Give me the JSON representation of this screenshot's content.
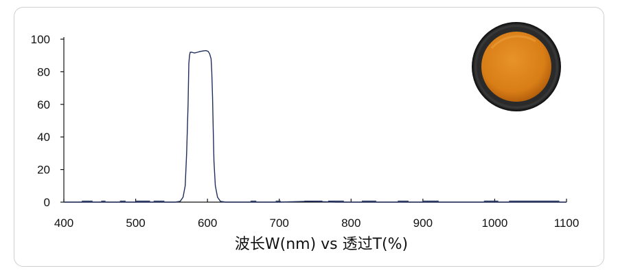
{
  "chart_data": {
    "type": "line",
    "title": "",
    "xlabel": "波长W(nm) vs 透过T(%)",
    "ylabel": "",
    "xlim": [
      400,
      1100
    ],
    "ylim": [
      0,
      100
    ],
    "x_ticks": [
      400,
      500,
      600,
      700,
      800,
      900,
      1000,
      1100
    ],
    "y_ticks": [
      0,
      20,
      40,
      60,
      80,
      100
    ],
    "grid": false,
    "legend": "none",
    "line_color": "#1f2d5a",
    "series": [
      {
        "x": [
          400,
          540,
          555,
          562,
          566,
          569,
          571,
          573,
          574,
          575,
          576,
          578,
          582,
          586,
          590,
          594,
          598,
          601,
          603,
          605,
          606,
          607,
          608,
          609,
          611,
          614,
          618,
          625,
          640,
          700,
          740,
          780,
          900,
          1100
        ],
        "y": [
          0,
          0,
          0,
          0.5,
          3,
          10,
          30,
          60,
          85,
          90,
          92,
          92,
          91.5,
          92,
          92.5,
          92.8,
          93,
          92.5,
          91,
          88,
          80,
          65,
          45,
          25,
          10,
          3,
          0.5,
          0,
          0,
          0,
          0.5,
          0,
          0,
          0
        ]
      }
    ]
  },
  "image": {
    "subject": "orange-filter-disc-icon",
    "filter_color": "#e08a22",
    "rim_color": "#141414"
  }
}
